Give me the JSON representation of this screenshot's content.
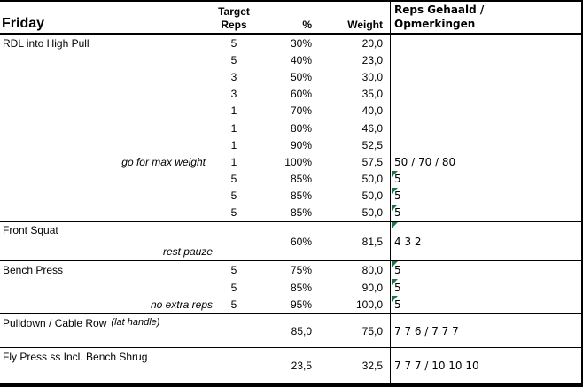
{
  "header": {
    "day": "Friday",
    "target_line1": "Target",
    "target_line2": "Reps",
    "pct": "%",
    "weight": "Weight",
    "result_line1": "Reps Gehaald /",
    "result_line2": "Opmerkingen"
  },
  "colors": {
    "flag_green": "#217346",
    "border": "#000000",
    "background": "#ffffff"
  },
  "rdl": {
    "name": "RDL into High Pull",
    "rows": [
      {
        "reps": "5",
        "pct": "30%",
        "weight": "20,0"
      },
      {
        "reps": "5",
        "pct": "40%",
        "weight": "23,0"
      },
      {
        "reps": "3",
        "pct": "50%",
        "weight": "30,0"
      },
      {
        "reps": "3",
        "pct": "60%",
        "weight": "35,0"
      },
      {
        "reps": "1",
        "pct": "70%",
        "weight": "40,0"
      },
      {
        "reps": "1",
        "pct": "80%",
        "weight": "46,0"
      },
      {
        "reps": "1",
        "pct": "90%",
        "weight": "52,5"
      },
      {
        "reps": "1",
        "pct": "100%",
        "weight": "57,5",
        "note": "go for max weight",
        "result": "50 / 70 / 80"
      },
      {
        "reps": "5",
        "pct": "85%",
        "weight": "50,0",
        "result": "5",
        "flag": "true"
      },
      {
        "reps": "5",
        "pct": "85%",
        "weight": "50,0",
        "result": "5",
        "flag": "true"
      },
      {
        "reps": "5",
        "pct": "85%",
        "weight": "50,0",
        "result": "5",
        "flag": "true"
      }
    ]
  },
  "front_squat": {
    "name": "Front Squat",
    "note": "rest pauze",
    "pct": "60%",
    "weight": "81,5",
    "result": "4 3 2",
    "flag": "true"
  },
  "bench_press": {
    "name": "Bench Press",
    "rows": [
      {
        "reps": "5",
        "pct": "75%",
        "weight": "80,0",
        "result": "5",
        "flag": "true"
      },
      {
        "reps": "5",
        "pct": "85%",
        "weight": "90,0",
        "result": "5",
        "flag": "true"
      },
      {
        "reps": "5",
        "pct": "95%",
        "weight": "100,0",
        "result": "5",
        "flag": "true",
        "note": "no extra reps"
      }
    ]
  },
  "pulldown": {
    "name": "Pulldown / Cable Row",
    "name_detail": "(lat handle)",
    "pct": "85,0",
    "weight": "75,0",
    "result": "7 7 6 / 7 7 7"
  },
  "fly_press": {
    "name": "Fly Press ss Incl. Bench Shrug",
    "pct": "23,5",
    "weight": "32,5",
    "result": "7 7 7 / 10 10 10"
  }
}
